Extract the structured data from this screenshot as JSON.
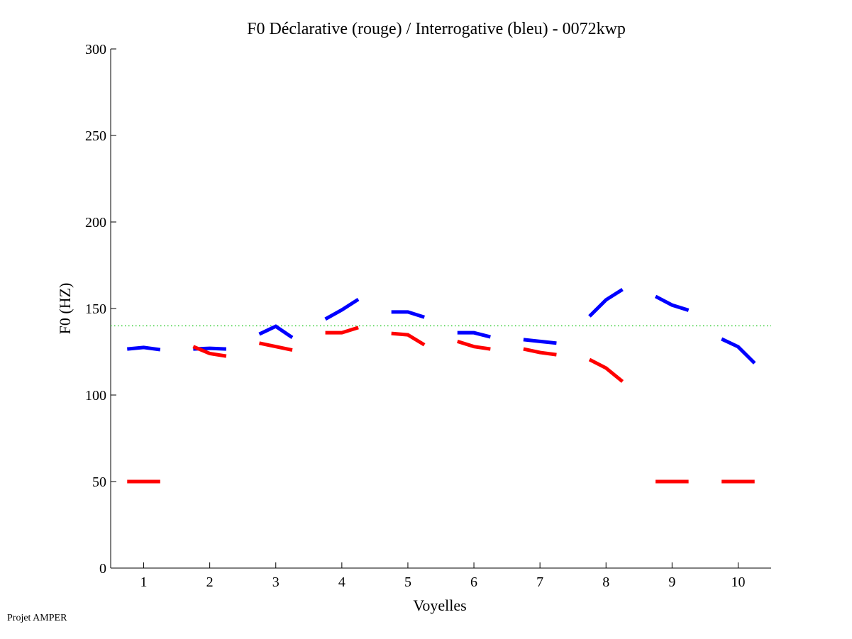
{
  "chart_data": {
    "type": "line",
    "title": "F0 Déclarative (rouge) / Interrogative (bleu) - 0072kwp",
    "xlabel": "Voyelles",
    "ylabel": "F0 (HZ)",
    "xlim": [
      0.5,
      10.5
    ],
    "ylim": [
      0,
      300
    ],
    "xticks": [
      1,
      2,
      3,
      4,
      5,
      6,
      7,
      8,
      9,
      10
    ],
    "yticks": [
      0,
      50,
      100,
      150,
      200,
      250,
      300
    ],
    "reference_line": {
      "y": 140,
      "color": "#33cc33",
      "style": "dotted"
    },
    "series": [
      {
        "name": "Interrogative (bleu)",
        "color": "#0000ff",
        "segments": [
          {
            "vowel": 1,
            "values": [
              126.6,
              127.5,
              126.2
            ]
          },
          {
            "vowel": 2,
            "values": [
              126.6,
              127,
              126.6
            ]
          },
          {
            "vowel": 3,
            "values": [
              135.2,
              139.7,
              133.2
            ]
          },
          {
            "vowel": 4,
            "values": [
              143.9,
              149.2,
              155.3
            ]
          },
          {
            "vowel": 5,
            "values": [
              148,
              148,
              145
            ]
          },
          {
            "vowel": 6,
            "values": [
              136,
              136,
              133.6
            ]
          },
          {
            "vowel": 7,
            "values": [
              132,
              131,
              130
            ]
          },
          {
            "vowel": 8,
            "values": [
              145.5,
              155,
              161
            ]
          },
          {
            "vowel": 9,
            "values": [
              157,
              152,
              149
            ]
          },
          {
            "vowel": 10,
            "values": [
              132.4,
              127.9,
              118.4
            ]
          }
        ]
      },
      {
        "name": "Déclarative (rouge)",
        "color": "#ff0000",
        "segments": [
          {
            "vowel": 1,
            "values": [
              50,
              50,
              50
            ]
          },
          {
            "vowel": 2,
            "values": [
              128,
              124,
              122.5
            ]
          },
          {
            "vowel": 3,
            "values": [
              130,
              128,
              126
            ]
          },
          {
            "vowel": 4,
            "values": [
              136,
              136,
              139
            ]
          },
          {
            "vowel": 5,
            "values": [
              135.6,
              134.8,
              129
            ]
          },
          {
            "vowel": 6,
            "values": [
              131,
              128,
              126.6
            ]
          },
          {
            "vowel": 7,
            "values": [
              126.6,
              124.6,
              123.3
            ]
          },
          {
            "vowel": 8,
            "values": [
              120.5,
              115.6,
              107.8
            ]
          },
          {
            "vowel": 9,
            "values": [
              50,
              50,
              50
            ]
          },
          {
            "vowel": 10,
            "values": [
              50,
              50,
              50
            ]
          }
        ]
      }
    ]
  },
  "footer": "Projet AMPER"
}
